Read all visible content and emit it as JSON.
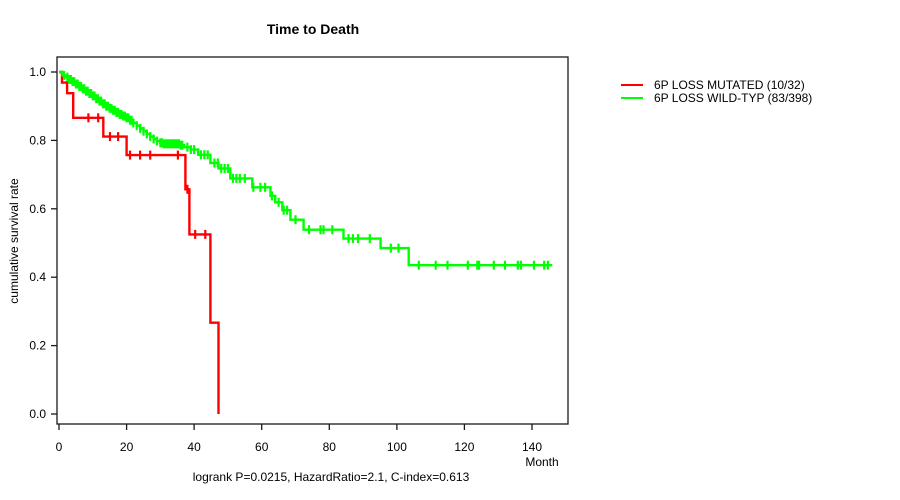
{
  "title": "Time to Death",
  "axes": {
    "x_label": "Month",
    "y_label": "cumulative survival rate",
    "x_ticks": [
      0,
      20,
      40,
      60,
      80,
      100,
      120,
      140
    ],
    "y_ticks": [
      "0.0",
      "0.2",
      "0.4",
      "0.6",
      "0.8",
      "1.0"
    ]
  },
  "footer": {
    "annotation": "logrank P=0.0215, HazardRatio=2.1, C-index=0.613"
  },
  "legend": {
    "items": [
      {
        "label": "6P LOSS MUTATED (10/32)",
        "color": "#ff0000"
      },
      {
        "label": "6P LOSS WILD-TYP (83/398)",
        "color": "#00ff00"
      }
    ]
  },
  "chart_data": {
    "type": "line",
    "subtype": "kaplan_meier_step",
    "title": "Time to Death",
    "xlabel": "Month",
    "ylabel": "cumulative survival rate",
    "xlim": [
      0,
      150
    ],
    "ylim": [
      0,
      1.0
    ],
    "grid": false,
    "legend_position": "right-outside",
    "annotation": "logrank P=0.0215, HazardRatio=2.1, C-index=0.613",
    "series": [
      {
        "name": "6P LOSS MUTATED (10/32)",
        "color": "#ff0000",
        "events": "10/32",
        "steps": [
          [
            0,
            1.0
          ],
          [
            0.9,
            0.969
          ],
          [
            2.4,
            0.938
          ],
          [
            4.2,
            0.866
          ],
          [
            13.1,
            0.811
          ],
          [
            20,
            0.757
          ],
          [
            37.4,
            0.657
          ],
          [
            38.6,
            0.525
          ],
          [
            44.8,
            0.267
          ],
          [
            47.2,
            0.0
          ]
        ],
        "censor_times": [
          8.7,
          11.6,
          15.1,
          17.5,
          21,
          24,
          27,
          35.2,
          38,
          40.3,
          43.3
        ]
      },
      {
        "name": "6P LOSS WILD-TYP (83/398)",
        "color": "#00ff00",
        "events": "83/398",
        "steps": [
          [
            0,
            1.0
          ],
          [
            1,
            0.99
          ],
          [
            2,
            0.985
          ],
          [
            3,
            0.978
          ],
          [
            4,
            0.972
          ],
          [
            5,
            0.965
          ],
          [
            6,
            0.958
          ],
          [
            7,
            0.951
          ],
          [
            8,
            0.944
          ],
          [
            9,
            0.937
          ],
          [
            10,
            0.93
          ],
          [
            11,
            0.922
          ],
          [
            12,
            0.915
          ],
          [
            13,
            0.907
          ],
          [
            14,
            0.9
          ],
          [
            15,
            0.894
          ],
          [
            16,
            0.888
          ],
          [
            17,
            0.882
          ],
          [
            18,
            0.876
          ],
          [
            19,
            0.871
          ],
          [
            20,
            0.866
          ],
          [
            21,
            0.859
          ],
          [
            22,
            0.851
          ],
          [
            23,
            0.843
          ],
          [
            24,
            0.835
          ],
          [
            25,
            0.827
          ],
          [
            26,
            0.819
          ],
          [
            27,
            0.811
          ],
          [
            28,
            0.804
          ],
          [
            29,
            0.798
          ],
          [
            30,
            0.793
          ],
          [
            31,
            0.79
          ],
          [
            36,
            0.786
          ],
          [
            37,
            0.78
          ],
          [
            39,
            0.773
          ],
          [
            41.2,
            0.758
          ],
          [
            44.8,
            0.734
          ],
          [
            47.2,
            0.718
          ],
          [
            50.7,
            0.689
          ],
          [
            57.2,
            0.663
          ],
          [
            62.6,
            0.638
          ],
          [
            64,
            0.619
          ],
          [
            66.1,
            0.596
          ],
          [
            68.5,
            0.568
          ],
          [
            72.4,
            0.539
          ],
          [
            84.2,
            0.513
          ],
          [
            95.2,
            0.485
          ],
          [
            103.5,
            0.435
          ],
          [
            146,
            0.435
          ]
        ],
        "censor_times": [
          1.5,
          2.5,
          3,
          3.5,
          4,
          4.5,
          5,
          5.5,
          6,
          6.5,
          7,
          7.5,
          8,
          8.5,
          9,
          9.5,
          10,
          10.5,
          11,
          11.5,
          12,
          12.5,
          13,
          13.5,
          14,
          14.5,
          15,
          15.5,
          16,
          16.5,
          17,
          17.5,
          18,
          18.5,
          19,
          19.5,
          20,
          20.5,
          21,
          21.5,
          22,
          23,
          24,
          25,
          26,
          27,
          28,
          29,
          30,
          30.5,
          31,
          31.5,
          32,
          32.5,
          33,
          33.5,
          34,
          34.5,
          35,
          35.5,
          36,
          36.5,
          38,
          39,
          40,
          42,
          43,
          44,
          46,
          47,
          48,
          49,
          50,
          51.5,
          52.5,
          53.5,
          55,
          57.5,
          59.6,
          61,
          63,
          65,
          66.5,
          67.5,
          70,
          74,
          77.4,
          78.3,
          80.9,
          85.7,
          87,
          88.5,
          92,
          98.2,
          100.5,
          106.5,
          111.5,
          115,
          121,
          123.8,
          124.3,
          128.7,
          132,
          135.8,
          136.7,
          140.6,
          143.6,
          144.7
        ]
      }
    ]
  }
}
